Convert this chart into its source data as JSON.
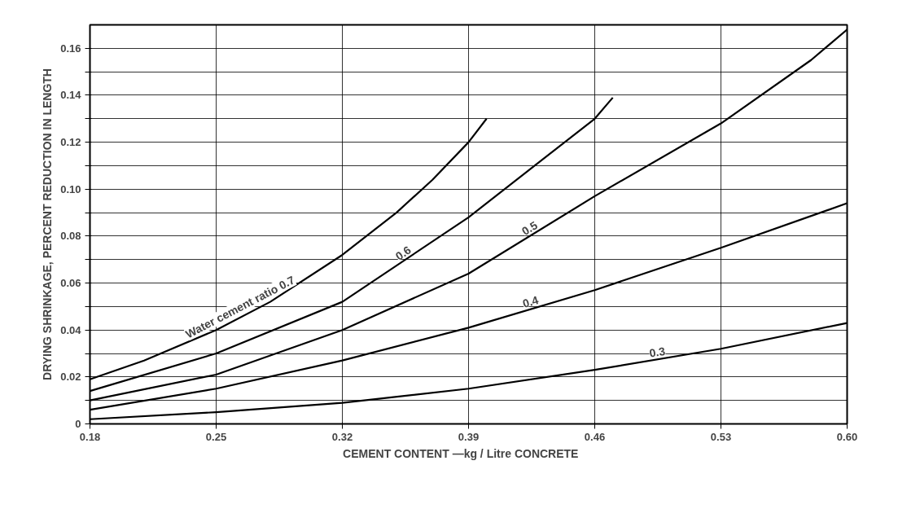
{
  "chart_data": {
    "type": "line",
    "xlabel": "CEMENT   CONTENT —kg / Litre    CONCRETE",
    "ylabel": "DRYING SHRINKAGE, PERCENT REDUCTION IN LENGTH",
    "xlim": [
      0.18,
      0.6
    ],
    "ylim": [
      0,
      0.17
    ],
    "xticks": [
      0.18,
      0.25,
      0.32,
      0.39,
      0.46,
      0.53,
      {
        "value": 0.6,
        "label": "0.60"
      }
    ],
    "yticks": [
      0,
      {
        "value": 0.01,
        "label": null
      },
      0.02,
      {
        "value": 0.03,
        "label": null
      },
      0.04,
      {
        "value": 0.05,
        "label": null
      },
      0.06,
      {
        "value": 0.07,
        "label": null
      },
      0.08,
      {
        "value": 0.09,
        "label": null
      },
      {
        "value": 0.1,
        "label": "0.10"
      },
      {
        "value": 0.11,
        "label": null
      },
      0.12,
      {
        "value": 0.13,
        "label": null
      },
      0.14,
      {
        "value": 0.15,
        "label": null
      },
      0.16
    ],
    "grid": true,
    "marker": "none",
    "line_style": "solid",
    "series": [
      {
        "name": "Water cement ratio 0.7",
        "color": "#000000",
        "x": [
          0.18,
          0.21,
          0.25,
          0.28,
          0.32,
          0.35,
          0.37,
          0.39,
          0.4
        ],
        "values": [
          0.019,
          0.027,
          0.04,
          0.052,
          0.072,
          0.09,
          0.104,
          0.12,
          0.13
        ]
      },
      {
        "name": "0.6",
        "color": "#000000",
        "x": [
          0.18,
          0.25,
          0.32,
          0.39,
          0.43,
          0.46,
          0.47
        ],
        "values": [
          0.014,
          0.03,
          0.052,
          0.088,
          0.112,
          0.13,
          0.139
        ]
      },
      {
        "name": "0.5",
        "color": "#000000",
        "x": [
          0.18,
          0.25,
          0.32,
          0.39,
          0.46,
          0.53,
          0.58,
          0.6
        ],
        "values": [
          0.01,
          0.021,
          0.04,
          0.064,
          0.097,
          0.128,
          0.155,
          0.168
        ]
      },
      {
        "name": "0.4",
        "color": "#000000",
        "x": [
          0.18,
          0.25,
          0.32,
          0.39,
          0.46,
          0.53,
          0.6
        ],
        "values": [
          0.006,
          0.015,
          0.027,
          0.041,
          0.057,
          0.075,
          0.094
        ]
      },
      {
        "name": "0.3",
        "color": "#000000",
        "x": [
          0.18,
          0.25,
          0.32,
          0.39,
          0.46,
          0.53,
          0.6
        ],
        "values": [
          0.002,
          0.005,
          0.009,
          0.015,
          0.023,
          0.032,
          0.043
        ]
      }
    ]
  }
}
